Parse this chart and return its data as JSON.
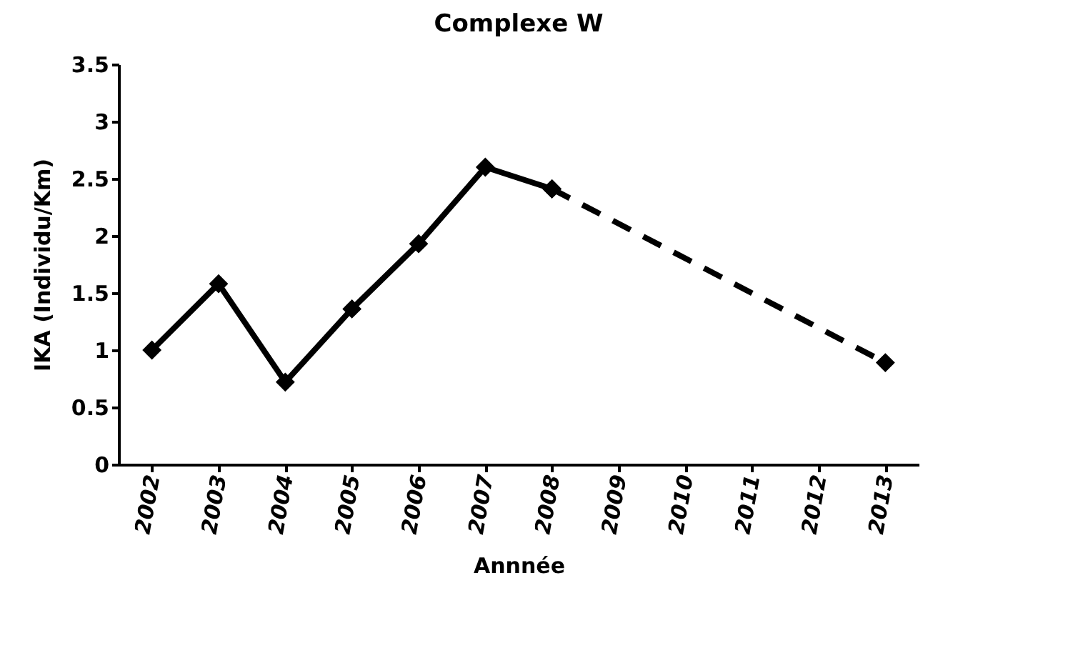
{
  "chart_data": {
    "type": "line",
    "title": "Complexe W",
    "xlabel": "Annnée",
    "ylabel": "IKA (Individu/Km)",
    "categories": [
      "2002",
      "2003",
      "2004",
      "2005",
      "2006",
      "2007",
      "2008",
      "2009",
      "2010",
      "2011",
      "2012",
      "2013"
    ],
    "series": [
      {
        "color": "#000000",
        "line_style": "solid",
        "marker": "diamond",
        "values": [
          1.0,
          1.58,
          0.72,
          1.36,
          1.93,
          2.6,
          2.41,
          null,
          null,
          null,
          null,
          null
        ]
      },
      {
        "color": "#000000",
        "line_style": "dashed",
        "marker": "diamond",
        "values": [
          null,
          null,
          null,
          null,
          null,
          null,
          2.41,
          null,
          null,
          null,
          null,
          0.89
        ]
      }
    ],
    "ylim": [
      0,
      3.5
    ],
    "yticks": [
      0,
      0.5,
      1,
      1.5,
      2,
      2.5,
      3,
      3.5
    ],
    "grid": false
  }
}
